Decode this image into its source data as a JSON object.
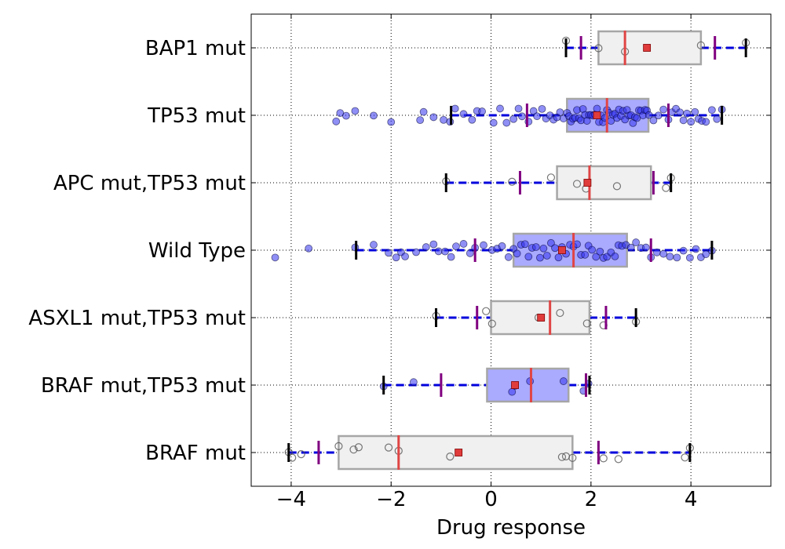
{
  "chart_data": {
    "type": "boxplot",
    "orientation": "horizontal",
    "xlabel": "Drug response",
    "xlim": [
      -4.8,
      5.6
    ],
    "xticks": [
      -4,
      -2,
      0,
      2,
      4
    ],
    "xtick_labels": [
      "−4",
      "−2",
      "0",
      "2",
      "4"
    ],
    "grid": true,
    "colors": {
      "box_grey_fill": "#f0f0f0",
      "box_blue_fill": "#aaaaff",
      "box_edge": "#a6a6a6",
      "median": "#e04545",
      "mean_marker": "#e03c3c",
      "whisker": "#0000dd",
      "whisker_cap": "#000000",
      "quantile_mark": "#800080",
      "point_blue": "#3333ee",
      "point_grey": "#9a9a9a"
    },
    "groups": [
      {
        "label": "BAP1 mut",
        "box_color": "grey",
        "q1": 2.15,
        "median": 2.68,
        "q3": 4.2,
        "mean": 3.12,
        "whisker_low": 1.5,
        "whisker_high": 5.1,
        "purple_marks": [
          1.8,
          4.48
        ],
        "points": [
          2.68,
          2.15,
          4.2,
          1.5,
          5.1
        ]
      },
      {
        "label": "TP53 mut",
        "box_color": "blue",
        "q1": 1.52,
        "median": 2.32,
        "q3": 3.15,
        "mean": 2.12,
        "whisker_low": -0.8,
        "whisker_high": 4.62,
        "purple_marks": [
          0.72,
          3.55
        ],
        "points": [
          -3.1,
          -3.02,
          -2.9,
          -2.72,
          -2.35,
          -2.0,
          -1.42,
          -1.35,
          -1.15,
          -0.95,
          -0.82,
          -0.72,
          -0.55,
          -0.38,
          -0.28,
          -0.18,
          0.05,
          0.18,
          0.31,
          0.45,
          0.55,
          0.62,
          0.75,
          0.85,
          0.92,
          1.02,
          1.1,
          1.18,
          1.25,
          1.32,
          1.38,
          1.45,
          1.52,
          1.56,
          1.6,
          1.64,
          1.68,
          1.72,
          1.76,
          1.8,
          1.84,
          1.88,
          1.92,
          1.96,
          2.0,
          2.04,
          2.08,
          2.12,
          2.16,
          2.2,
          2.24,
          2.28,
          2.32,
          2.36,
          2.4,
          2.44,
          2.48,
          2.52,
          2.56,
          2.6,
          2.64,
          2.68,
          2.72,
          2.76,
          2.8,
          2.84,
          2.88,
          2.92,
          2.96,
          3.0,
          3.04,
          3.08,
          3.12,
          3.16,
          3.25,
          3.35,
          3.45,
          3.55,
          3.62,
          3.7,
          3.78,
          3.85,
          3.92,
          4.0,
          4.08,
          4.15,
          4.22,
          4.3,
          4.42,
          4.52,
          4.62
        ]
      },
      {
        "label": "APC mut,TP53 mut",
        "box_color": "grey",
        "q1": 1.32,
        "median": 1.97,
        "q3": 3.2,
        "mean": 1.93,
        "whisker_low": -0.9,
        "whisker_high": 3.6,
        "purple_marks": [
          0.58,
          3.25
        ],
        "points": [
          -0.9,
          0.42,
          1.2,
          1.72,
          1.9,
          2.52,
          3.5,
          3.6
        ]
      },
      {
        "label": "Wild Type",
        "box_color": "blue",
        "q1": 0.45,
        "median": 1.65,
        "q3": 2.72,
        "mean": 1.42,
        "whisker_low": -2.7,
        "whisker_high": 4.42,
        "purple_marks": [
          -0.32,
          3.2
        ],
        "points": [
          -4.32,
          -3.65,
          -2.72,
          -2.35,
          -2.05,
          -1.9,
          -1.8,
          -1.72,
          -1.5,
          -1.3,
          -1.15,
          -1.05,
          -0.92,
          -0.8,
          -0.7,
          -0.55,
          -0.42,
          -0.32,
          -0.15,
          0.02,
          0.12,
          0.22,
          0.35,
          0.45,
          0.52,
          0.6,
          0.68,
          0.75,
          0.82,
          0.9,
          0.98,
          1.05,
          1.12,
          1.2,
          1.28,
          1.35,
          1.42,
          1.5,
          1.58,
          1.65,
          1.72,
          1.8,
          1.88,
          1.95,
          2.02,
          2.1,
          2.18,
          2.25,
          2.32,
          2.4,
          2.48,
          2.55,
          2.62,
          2.7,
          2.8,
          2.9,
          3.0,
          3.1,
          3.2,
          3.32,
          3.45,
          3.58,
          3.72,
          3.85,
          3.98,
          4.1,
          4.2,
          4.3,
          4.42
        ]
      },
      {
        "label": "ASXL1 mut,TP53 mut",
        "box_color": "grey",
        "q1": 0.0,
        "median": 1.18,
        "q3": 1.97,
        "mean": 1.0,
        "whisker_low": -1.1,
        "whisker_high": 2.9,
        "purple_marks": [
          -0.28,
          2.3
        ],
        "points": [
          -1.1,
          -0.1,
          0.02,
          0.95,
          1.38,
          1.92,
          2.25,
          2.9
        ]
      },
      {
        "label": "BRAF mut,TP53 mut",
        "box_color": "blue",
        "q1": -0.08,
        "median": 0.8,
        "q3": 1.55,
        "mean": 0.48,
        "whisker_low": -2.15,
        "whisker_high": 1.97,
        "purple_marks": [
          -1.0,
          1.9
        ],
        "points": [
          -2.15,
          -1.55,
          0.42,
          0.48,
          0.78,
          1.45,
          1.85,
          1.95
        ]
      },
      {
        "label": "BRAF mut",
        "box_color": "grey",
        "q1": -3.05,
        "median": -1.85,
        "q3": 1.63,
        "mean": -0.65,
        "whisker_low": -4.05,
        "whisker_high": 3.98,
        "purple_marks": [
          -3.45,
          2.15
        ],
        "points": [
          -4.05,
          -3.98,
          -3.8,
          -3.05,
          -2.75,
          -2.65,
          -2.05,
          -1.85,
          -0.82,
          1.42,
          1.5,
          1.63,
          2.25,
          2.55,
          3.88,
          3.98
        ]
      }
    ]
  }
}
